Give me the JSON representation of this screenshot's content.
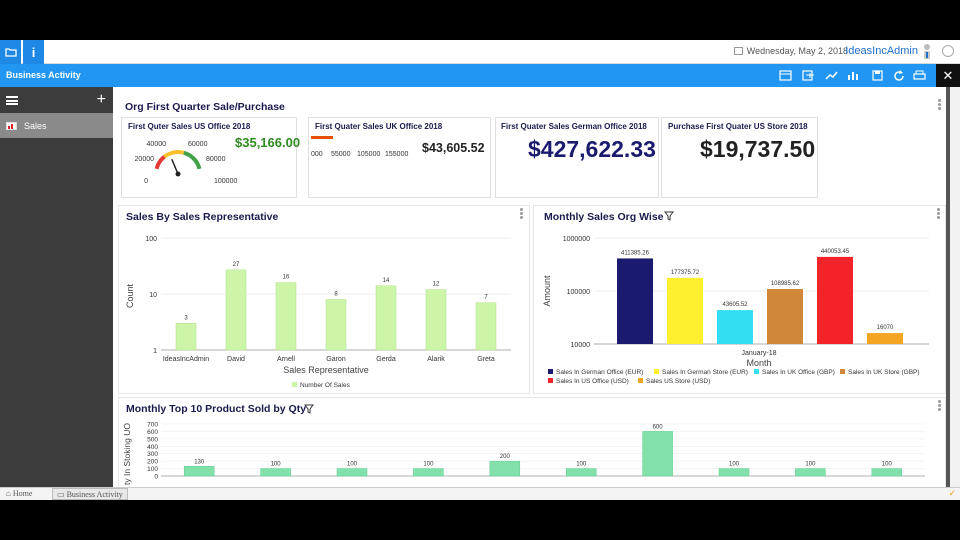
{
  "topbar": {
    "date": "Wednesday, May 2, 2018",
    "user": "IdeasIncAdmin",
    "folder_icon": "folder-icon",
    "info_label": "i"
  },
  "header": {
    "title": "Business Activity",
    "close": "✕"
  },
  "sidebar": {
    "add_label": "+",
    "items": [
      {
        "label": "Sales"
      }
    ]
  },
  "dashboard": {
    "title": "Org First Quarter Sale/Purchase"
  },
  "kpis": [
    {
      "title": "First Quter Sales US Office 2018",
      "value": "$35,166.00",
      "gauge_ticks": [
        "0",
        "20000",
        "40000",
        "60000",
        "80000",
        "100000"
      ],
      "gauge_value": 35166
    },
    {
      "title": "First Quater Sales UK Office 2018",
      "value": "$43,605.52",
      "linear_ticks": [
        "000",
        "55000",
        "105000",
        "155000"
      ]
    },
    {
      "title": "First Quater Sales German Office 2018",
      "value": "$427,622.33"
    },
    {
      "title": "Purchase First Quater US Store 2018",
      "value": "$19,737.50"
    }
  ],
  "colors": {
    "accent": "#2196f3",
    "green_value": "#2e8b1e",
    "navy_value": "#1a1a6e",
    "bar_green": "#ccf5a8",
    "bar_teal": "#82e0aa"
  },
  "chart_data": [
    {
      "type": "bar",
      "title": "Sales By Sales Representative",
      "xlabel": "Sales Representative",
      "ylabel": "Count",
      "scale": "log",
      "ylim": [
        1,
        100
      ],
      "yticks": [
        "100",
        "10",
        "1"
      ],
      "categories": [
        "IdeasIncAdmin",
        "David",
        "Arnell",
        "Garon",
        "Gerda",
        "Alarik",
        "Greta"
      ],
      "series": [
        {
          "name": "Number Of Sales",
          "values": [
            3,
            27,
            16,
            8,
            14,
            12,
            7
          ]
        }
      ],
      "legend": "bottom"
    },
    {
      "type": "bar",
      "title": "Monthly Sales Org Wise",
      "xlabel": "Month",
      "ylabel": "Amount",
      "scale": "log",
      "ylim": [
        10000,
        1000000
      ],
      "yticks": [
        "1000000",
        "100000",
        "10000"
      ],
      "categories": [
        "January-18"
      ],
      "series": [
        {
          "name": "Sales In German Office (EUR)",
          "values": [
            411385.26
          ],
          "label": "411385.26",
          "color": "#1a1a6e"
        },
        {
          "name": "Sales In German Store (EUR)",
          "values": [
            177375.72
          ],
          "label": "177375.72",
          "color": "#ffef2e"
        },
        {
          "name": "Sales In UK Office (GBP)",
          "values": [
            43605.52
          ],
          "label": "43605.52",
          "color": "#33ddf2"
        },
        {
          "name": "Sales In UK Store (GBP)",
          "values": [
            108985.62
          ],
          "label": "108985.62",
          "color": "#d0873a"
        },
        {
          "name": "Sales In US Office (USD)",
          "values": [
            440053.45
          ],
          "label": "440053.45",
          "color": "#f2242a"
        },
        {
          "name": "Sales US Store (USD)",
          "values": [
            16070
          ],
          "label": "16070",
          "color": "#f5a524"
        }
      ],
      "legend": "bottom"
    },
    {
      "type": "bar",
      "title": "Monthly Top 10 Product Sold by Qty",
      "ylabel": "ty In Stoking UO",
      "ylim": [
        0,
        700
      ],
      "yticks": [
        "700",
        "600",
        "500",
        "400",
        "300",
        "200",
        "100",
        "0"
      ],
      "values": [
        130,
        100,
        100,
        100,
        200,
        100,
        600,
        100,
        100,
        100
      ]
    }
  ],
  "footer": {
    "home": "Home",
    "tab": "Business Activity"
  }
}
